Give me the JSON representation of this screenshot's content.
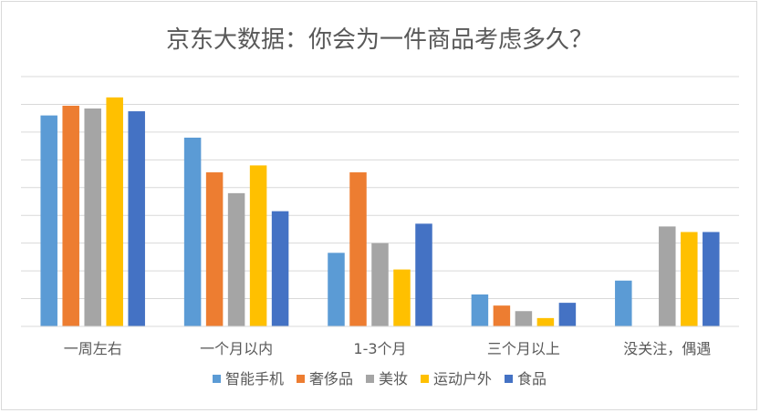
{
  "chart_data": {
    "type": "bar",
    "title": "京东大数据：你会为一件商品考虑多久？",
    "categories": [
      "一周左右",
      "一个月以内",
      "1-3个月",
      "三个月以上",
      "没关注，偶遇"
    ],
    "series": [
      {
        "name": "智能手机",
        "color": "#5B9BD5",
        "values": [
          7.6,
          6.8,
          2.65,
          1.15,
          1.65
        ]
      },
      {
        "name": "奢侈品",
        "color": "#ED7D31",
        "values": [
          7.95,
          5.55,
          5.55,
          0.75,
          0
        ]
      },
      {
        "name": "美妆",
        "color": "#A5A5A5",
        "values": [
          7.85,
          4.8,
          3.0,
          0.55,
          3.6
        ]
      },
      {
        "name": "运动户外",
        "color": "#FFC000",
        "values": [
          8.25,
          5.8,
          2.05,
          0.3,
          3.4
        ]
      },
      {
        "name": "食品",
        "color": "#4472C4",
        "values": [
          7.75,
          4.15,
          3.7,
          0.85,
          3.4
        ]
      }
    ],
    "ylim": [
      0,
      9
    ],
    "gridlines": 9,
    "grid": true,
    "legend_position": "bottom"
  }
}
